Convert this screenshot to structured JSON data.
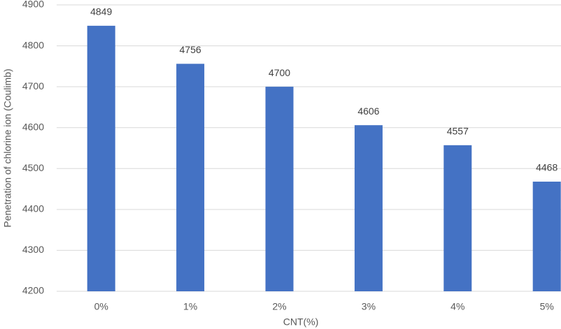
{
  "chart_data": {
    "type": "bar",
    "x_label": "CNT(%)",
    "y_label": "Penetration of chlorine ion (Coulimb)",
    "categories": [
      "0%",
      "1%",
      "2%",
      "3%",
      "4%",
      "5%"
    ],
    "values": [
      4849,
      4756,
      4700,
      4606,
      4557,
      4468
    ],
    "color": "#4472c4",
    "ylim": [
      4200,
      4900
    ],
    "yticks": [
      4200,
      4300,
      4400,
      4500,
      4600,
      4700,
      4800,
      4900
    ],
    "grid": true
  }
}
